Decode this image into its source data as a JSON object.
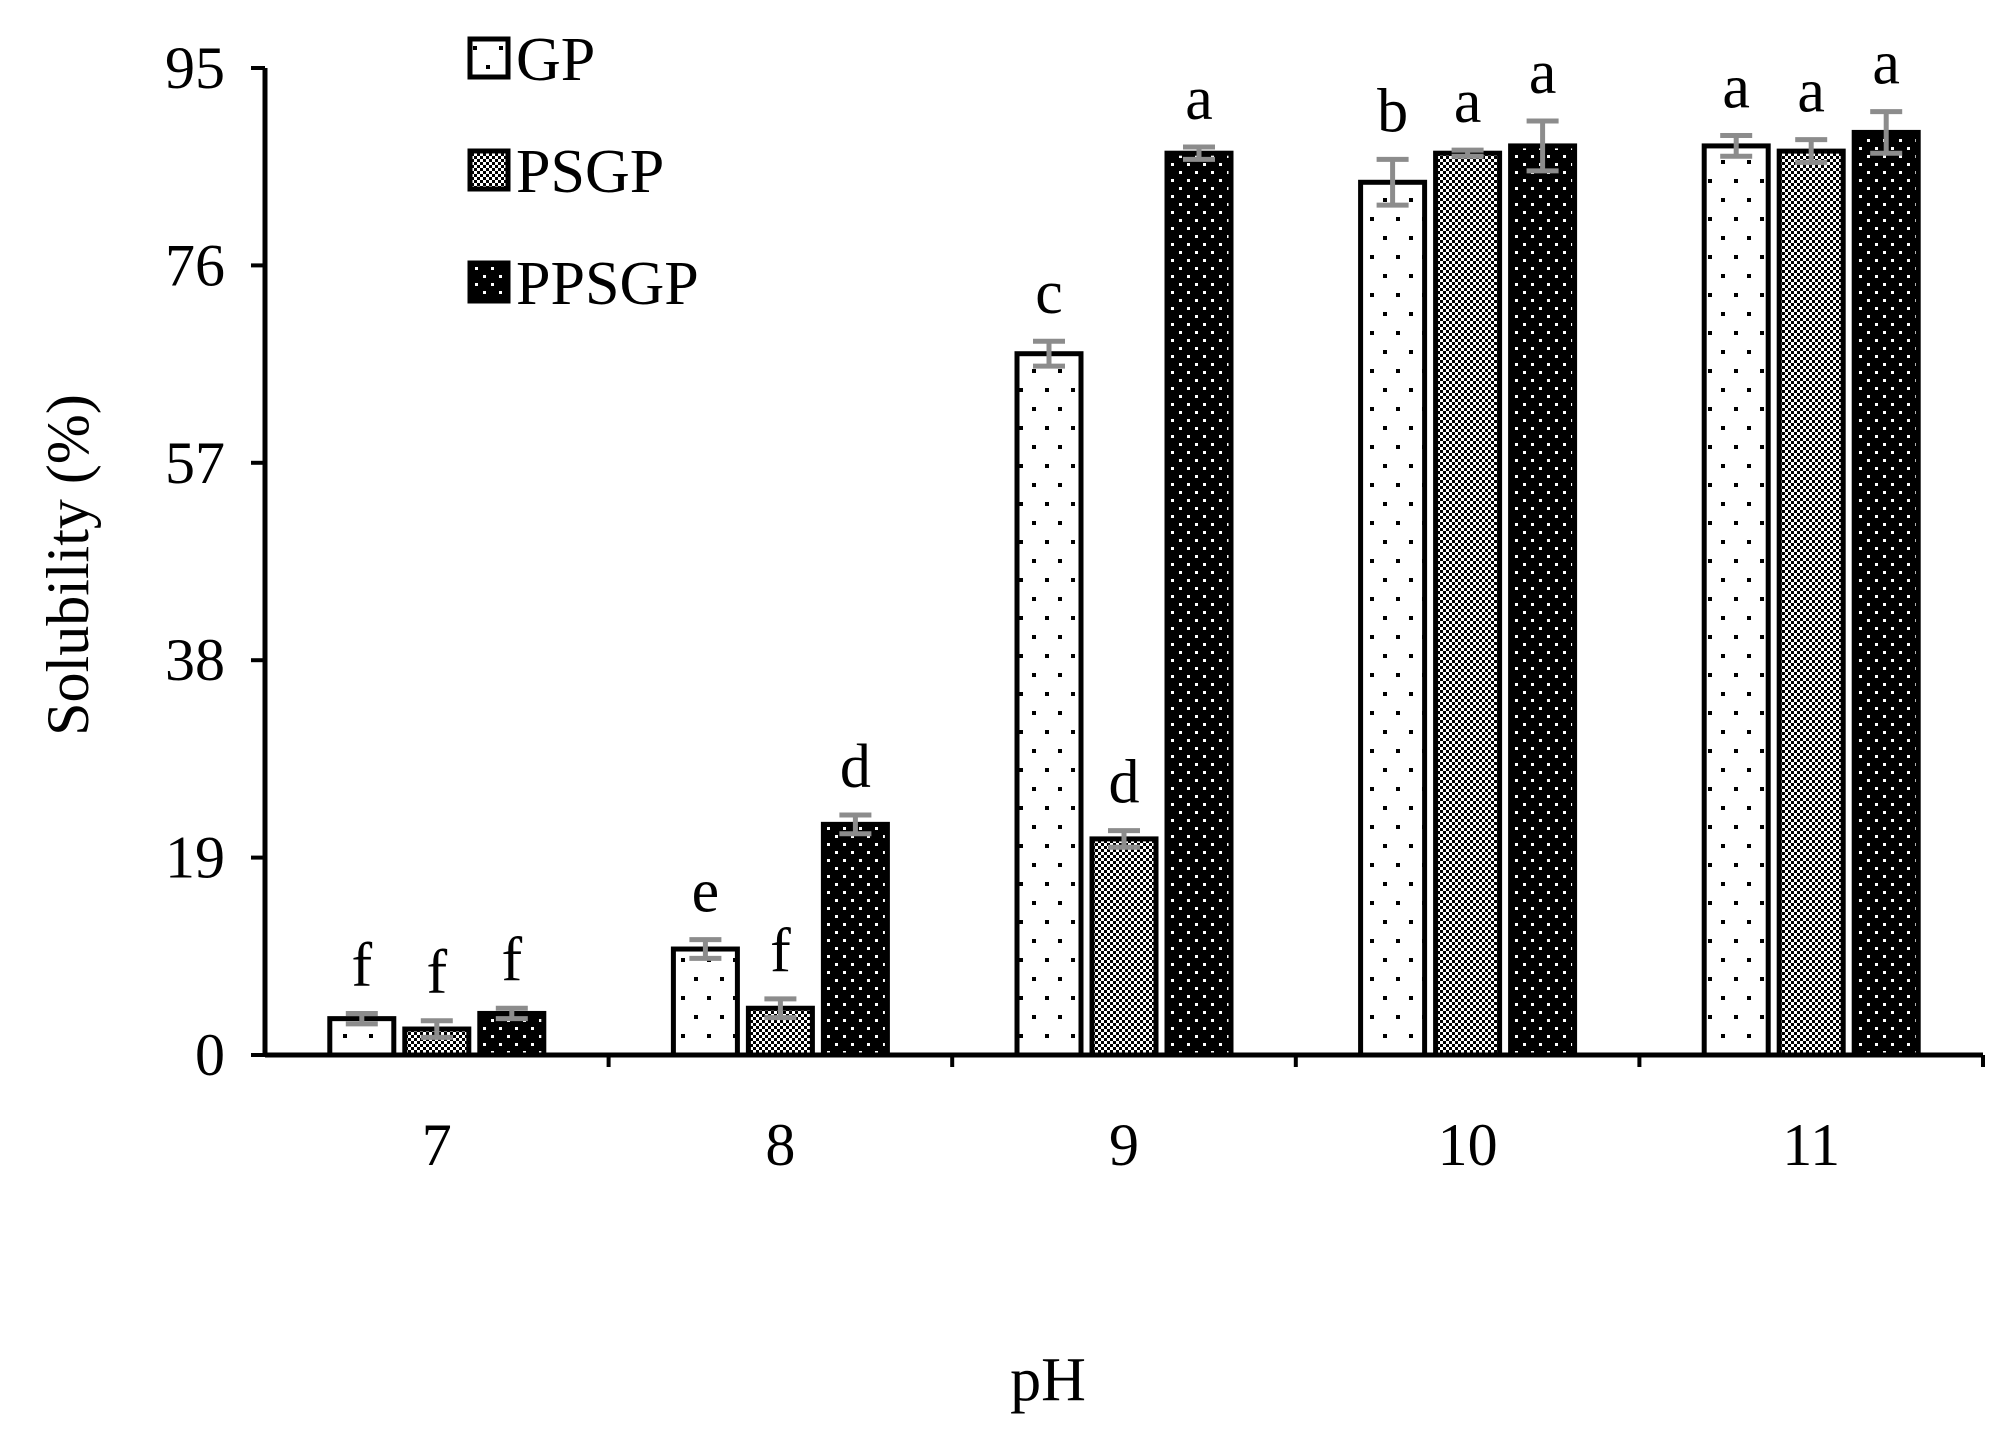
{
  "chart_data": {
    "type": "bar",
    "xlabel": "pH",
    "ylabel": "Solubility (%)",
    "categories": [
      "7",
      "8",
      "9",
      "10",
      "11"
    ],
    "ylim": [
      0,
      95
    ],
    "yticks": [
      0,
      19,
      38,
      57,
      76,
      95
    ],
    "ytick_labels": [
      "0",
      "19",
      "38",
      "57",
      "76",
      "95"
    ],
    "grid": false,
    "legend_position": "top-left",
    "series": [
      {
        "name": "GP",
        "pattern": "white-dots",
        "values": [
          3.5,
          10.2,
          67.5,
          84.0,
          87.5
        ],
        "errors": [
          0.5,
          0.9,
          1.2,
          2.2,
          1.0
        ],
        "letters": [
          "f",
          "e",
          "c",
          "b",
          "a"
        ]
      },
      {
        "name": "PSGP",
        "pattern": "checker",
        "values": [
          2.5,
          4.5,
          20.8,
          86.8,
          87.0
        ],
        "errors": [
          0.8,
          0.9,
          0.8,
          0.3,
          1.1
        ],
        "letters": [
          "f",
          "f",
          "d",
          "a",
          "a"
        ]
      },
      {
        "name": "PPSGP",
        "pattern": "black-dots",
        "values": [
          4.0,
          22.2,
          86.8,
          87.5,
          88.8
        ],
        "errors": [
          0.5,
          0.9,
          0.6,
          2.4,
          2.0
        ],
        "letters": [
          "f",
          "d",
          "a",
          "a",
          "a"
        ]
      }
    ],
    "colors": {
      "axis": "#000000",
      "error_bar": "#8c8c8c",
      "bar_outline": "#000000"
    }
  }
}
